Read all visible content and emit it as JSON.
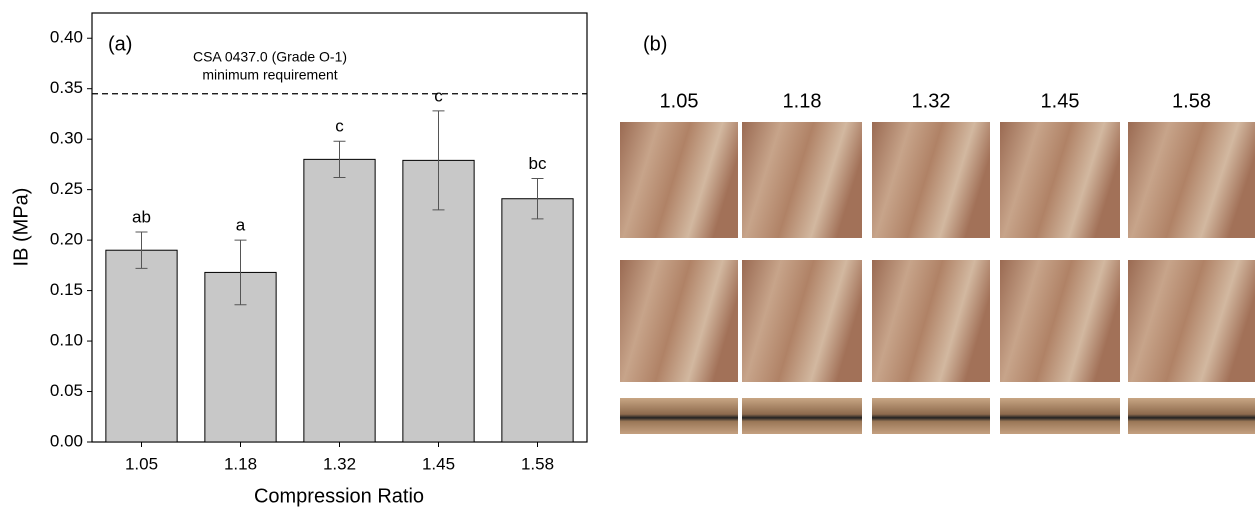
{
  "chart_data": {
    "type": "bar",
    "panel_label": "(a)",
    "x_label": "Compression Ratio",
    "y_label": "IB (MPa)",
    "categories": [
      "1.05",
      "1.18",
      "1.32",
      "1.45",
      "1.58"
    ],
    "values": [
      0.19,
      0.168,
      0.28,
      0.279,
      0.241
    ],
    "errors": [
      0.018,
      0.032,
      0.018,
      0.049,
      0.02
    ],
    "significance_labels": [
      "ab",
      "a",
      "c",
      "c",
      "bc"
    ],
    "color": "#c8c8c8",
    "ylim": [
      0,
      0.425
    ],
    "yticks": [
      {
        "value": 0,
        "label": "0.00"
      },
      0.05,
      {
        "value": 0.1,
        "label": "0.10"
      },
      0.15,
      {
        "value": 0.2,
        "label": "0.20"
      },
      0.25,
      {
        "value": 0.3,
        "label": "0.30"
      },
      0.35,
      {
        "value": 0.4,
        "label": "0.40"
      }
    ],
    "reference_line": {
      "value": 0.345,
      "label": [
        "CSA 0437.0 (Grade O-1)",
        "minimum requirement"
      ]
    }
  },
  "photo_panel": {
    "label": "(b)",
    "columns": [
      "1.05",
      "1.18",
      "1.32",
      "1.45",
      "1.58"
    ]
  }
}
